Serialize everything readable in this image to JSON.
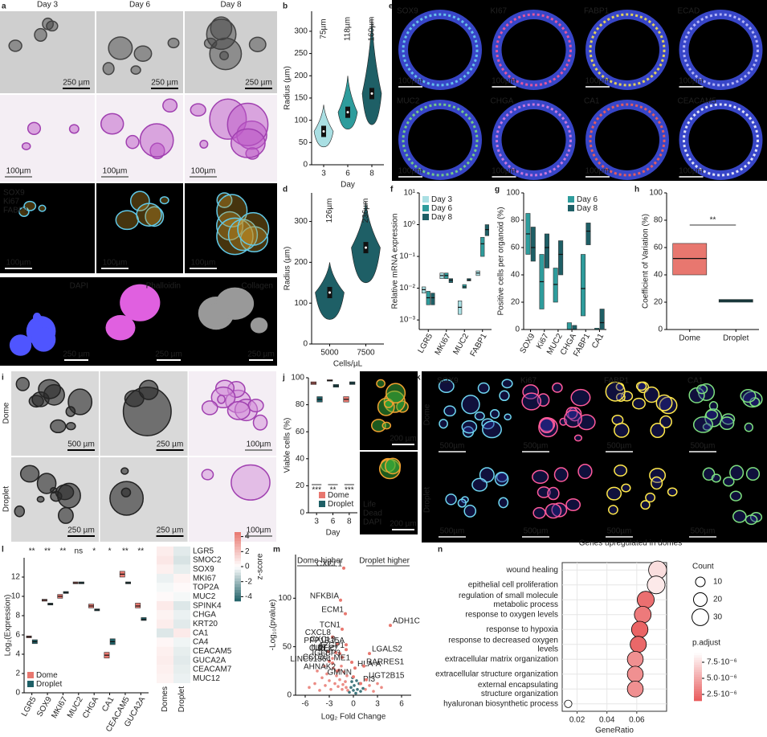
{
  "panel_labels": [
    "a",
    "b",
    "c",
    "d",
    "e",
    "f",
    "g",
    "h",
    "i",
    "j",
    "k",
    "l",
    "m",
    "n"
  ],
  "images": {
    "a": {
      "columns": [
        "Day 3",
        "Day 6",
        "Day 8"
      ],
      "scale_bars": [
        [
          "250 µm",
          "250 µm",
          "250 µm"
        ],
        [
          "100µm",
          "100µm",
          "100µm"
        ],
        [
          "100µm",
          "100µm",
          "100µm"
        ]
      ],
      "stains": [
        "SOX9",
        "Ki67",
        "FABP1"
      ],
      "stain_colors": [
        "#6fd6f0",
        "#ff5a5a",
        "#ffe84a"
      ]
    },
    "c": {
      "stains": [
        "DAPI",
        "Phalloidin",
        "Collagen"
      ],
      "stain_colors": [
        "#4f55ff",
        "#e060e0",
        "#ffffff"
      ],
      "scale_bars": [
        "250 µm",
        "250 µm",
        "250 µm"
      ]
    },
    "e": {
      "stains": [
        "SOX9",
        "KI67",
        "FABP1",
        "ECAD",
        "MUC2",
        "CHGA",
        "CA1",
        "CEACAM5"
      ],
      "stain_colors": [
        "#6fd6f0",
        "#ff5a9a",
        "#ffe84a",
        "#c8c8ff",
        "#7ee07e",
        "#e080e0",
        "#ff6050",
        "#ffffff"
      ],
      "scale_bars": [
        "100µm",
        "100µm",
        "100µm",
        "100µm",
        "100µm",
        "100µm",
        "100µm",
        "100µm"
      ]
    },
    "i": {
      "rows": [
        "Dome",
        "Droplet"
      ],
      "row_colors": [
        "#e8776f",
        "#1e5f66"
      ],
      "scale_bars": [
        [
          "500 µm",
          "250 µm",
          "100µm"
        ],
        [
          "250 µm",
          "250 µm",
          "100µm"
        ]
      ]
    },
    "j": {
      "scale_bars": [
        "200 µm",
        "200 µm"
      ],
      "stains": [
        "Life",
        "Dead",
        "DAPI"
      ],
      "stain_colors": [
        "#7ee07e",
        "#ffa030",
        "#5060ff"
      ]
    },
    "k": {
      "rows": [
        "Dome",
        "Droplet"
      ],
      "row_colors": [
        "#e8776f",
        "#1e8c8c"
      ],
      "stains": [
        "SOX9",
        "Ki67",
        "FABP1",
        "CA1"
      ],
      "stain_colors": [
        "#6fd6f0",
        "#ff5a9a",
        "#ffe84a",
        "#7ee07e"
      ],
      "scale_bars": [
        [
          "500µm",
          "500µm",
          "500µm",
          "500µm"
        ],
        [
          "500µm",
          "500µm",
          "500µm",
          "500µm"
        ]
      ]
    }
  },
  "chart_data": [
    {
      "type": "violin",
      "x_label": "Day",
      "y_label": "Radius (µm)",
      "categories": [
        "3",
        "6",
        "8"
      ],
      "values": [
        75,
        118,
        160
      ],
      "value_labels": [
        "75µm",
        "118µm",
        "160µm"
      ],
      "low": [
        40,
        80,
        90
      ],
      "high": [
        135,
        200,
        330
      ],
      "colors": [
        "#a9dfe3",
        "#2e9c9c",
        "#1e5f66"
      ],
      "ylim": [
        0,
        345
      ],
      "yticks": [
        0,
        50,
        100,
        150,
        200,
        250,
        300
      ]
    },
    {
      "type": "violin",
      "x_label": "Cells/µL",
      "y_label": "Radius (µm)",
      "categories": [
        "5000",
        "7500"
      ],
      "values": [
        126,
        236
      ],
      "value_labels": [
        "126µm",
        "236µm"
      ],
      "low": [
        60,
        150
      ],
      "high": [
        200,
        350
      ],
      "colors": [
        "#1e5f66",
        "#1e5f66"
      ],
      "ylim": [
        0,
        370
      ],
      "yticks": [
        0,
        100,
        200,
        300
      ]
    },
    {
      "type": "box",
      "y_label": "Relative mRNA expression",
      "log_y": true,
      "rotate_labels": true,
      "legend": "upper left",
      "categories": [
        "LGR5",
        "MKI67",
        "MUC2",
        "FABP1"
      ],
      "series": [
        {
          "name": "Day 3",
          "color": "#a9dfe3",
          "values": [
            0.009,
            0.025,
            0.0025,
            0.03
          ],
          "low": [
            0.007,
            0.02,
            0.0015,
            0.025
          ],
          "high": [
            0.011,
            0.03,
            0.004,
            0.035
          ]
        },
        {
          "name": "Day 6",
          "color": "#2e9c9c",
          "values": [
            0.005,
            0.025,
            0.011,
            0.25
          ],
          "low": [
            0.003,
            0.02,
            0.01,
            0.1
          ],
          "high": [
            0.008,
            0.03,
            0.013,
            0.4
          ]
        },
        {
          "name": "Day 8",
          "color": "#1e5f66",
          "values": [
            0.005,
            0.018,
            0.018,
            0.7
          ],
          "low": [
            0.003,
            0.015,
            0.017,
            0.45
          ],
          "high": [
            0.007,
            0.02,
            0.02,
            1.0
          ]
        }
      ],
      "ylim": [
        0.0005,
        10
      ],
      "yticks": [
        {
          "value": 0.001,
          "label": "10⁻³"
        },
        {
          "value": 0.01,
          "label": "10⁻²"
        },
        {
          "value": 0.1,
          "label": "10⁻¹"
        },
        {
          "value": 1,
          "label": "10⁰"
        },
        {
          "value": 10,
          "label": "10¹"
        }
      ]
    },
    {
      "type": "box",
      "y_label": "Positive cells per organoid (%)",
      "rotate_labels": true,
      "legend": "upper right",
      "categories": [
        "SOX9",
        "Ki67",
        "MUC2",
        "CHGA",
        "FABP1",
        "CA1"
      ],
      "series": [
        {
          "name": "Day 6",
          "color": "#2e9c9c",
          "values": [
            70,
            35,
            33,
            0,
            30,
            0
          ],
          "low": [
            55,
            15,
            20,
            0,
            10,
            0
          ],
          "high": [
            85,
            55,
            45,
            5,
            55,
            1
          ]
        },
        {
          "name": "Day 8",
          "color": "#1e5f66",
          "values": [
            60,
            60,
            55,
            0,
            72,
            5
          ],
          "low": [
            50,
            45,
            40,
            0,
            62,
            0
          ],
          "high": [
            75,
            70,
            65,
            3,
            78,
            15
          ]
        }
      ],
      "ylim": [
        0,
        100
      ],
      "yticks": [
        0,
        20,
        40,
        60,
        80,
        100
      ]
    },
    {
      "type": "box",
      "y_label": "Coefficient of Variation (%)",
      "categories": [
        "Dome",
        "Droplet"
      ],
      "values": [
        52,
        21
      ],
      "low": [
        40,
        20
      ],
      "high": [
        63,
        22
      ],
      "colors": [
        "#e8776f",
        "#1e5f66"
      ],
      "annotation": "**",
      "ylim": [
        0,
        100
      ],
      "yticks": [
        0,
        20,
        40,
        60,
        80,
        100
      ]
    },
    {
      "type": "box",
      "x_label": "Day",
      "y_label": "Viable cells (%)",
      "legend": "lower right",
      "categories": [
        "3",
        "6",
        "8"
      ],
      "series": [
        {
          "name": "Dome",
          "color": "#e8776f",
          "values": [
            96,
            98,
            84
          ],
          "low": [
            95,
            97.5,
            82
          ],
          "high": [
            97,
            98.5,
            86
          ]
        },
        {
          "name": "Droplet",
          "color": "#1e5f66",
          "values": [
            84,
            94,
            96
          ],
          "low": [
            82,
            93,
            95
          ],
          "high": [
            86,
            95,
            97
          ]
        }
      ],
      "significance": [
        "***",
        "**",
        "***"
      ],
      "ylim": [
        0,
        100
      ],
      "yticks": [
        0,
        20,
        40,
        60,
        80,
        100
      ]
    },
    {
      "type": "box",
      "y_label": "Log₂(Expression)",
      "rotate_labels": true,
      "legend": "lower left",
      "categories": [
        "LGR5",
        "SOX9",
        "MKI67",
        "MUC2",
        "CHGA",
        "CA1",
        "CEACAM5",
        "GUCA2A"
      ],
      "series": [
        {
          "name": "Dome",
          "color": "#e8776f",
          "values": [
            5.8,
            9.6,
            10.0,
            11.4,
            9.0,
            3.9,
            12.3,
            9.0
          ],
          "low": [
            5.7,
            9.5,
            9.8,
            11.3,
            8.8,
            3.6,
            12.0,
            8.8
          ],
          "high": [
            5.9,
            9.7,
            10.2,
            11.5,
            9.2,
            4.2,
            12.6,
            9.3
          ]
        },
        {
          "name": "Droplet",
          "color": "#1e5f66",
          "values": [
            5.3,
            9.2,
            10.4,
            11.4,
            8.6,
            5.3,
            11.4,
            7.6
          ],
          "low": [
            5.1,
            9.1,
            10.3,
            11.3,
            8.5,
            5.0,
            11.3,
            7.5
          ],
          "high": [
            5.5,
            9.3,
            10.5,
            11.5,
            8.7,
            5.6,
            11.5,
            7.8
          ]
        }
      ],
      "significance": [
        "**",
        "**",
        "**",
        "ns",
        "*",
        "*",
        "**",
        "**"
      ],
      "ylim": [
        0,
        14
      ],
      "yticks": [
        0,
        2,
        4,
        6,
        8,
        10,
        12
      ]
    },
    {
      "type": "heatmap",
      "rows": [
        "LGR5",
        "SMOC2",
        "SOX9",
        "MKI67",
        "TOP2A",
        "MUC2",
        "SPINK4",
        "CHGA",
        "KRT20",
        "CA1",
        "CA4",
        "CEACAM5",
        "GUCA2A",
        "CEACAM7",
        "MUC12"
      ],
      "columns": [
        "Domes",
        "Droplet"
      ],
      "values": [
        [
          0.6,
          -0.6
        ],
        [
          0.8,
          -0.8
        ],
        [
          0.5,
          -0.5
        ],
        [
          -0.4,
          0.4
        ],
        [
          -0.2,
          0.2
        ],
        [
          0.2,
          -0.2
        ],
        [
          0.7,
          -0.7
        ],
        [
          0.4,
          -0.4
        ],
        [
          0.6,
          -0.6
        ],
        [
          -0.7,
          0.7
        ],
        [
          0.3,
          -0.3
        ],
        [
          0.5,
          -0.5
        ],
        [
          0.6,
          -0.6
        ],
        [
          0.5,
          -0.5
        ],
        [
          0.4,
          -0.4
        ]
      ],
      "colorbar_label": "z-score",
      "zlim": [
        -4.6,
        4.6
      ],
      "zticks": [
        4,
        2,
        0,
        -2,
        -4
      ],
      "colors": [
        "#1e5f66",
        "#ffffff",
        "#e8776f"
      ]
    },
    {
      "type": "scatter",
      "x_label": "Log₂ Fold Change",
      "y_label": "-Log₁₀(pvalue)",
      "annotations": [
        "Dome higher",
        "Droplet higher"
      ],
      "xlim": [
        -7.2,
        7.2
      ],
      "xticks": [
        -6,
        -3,
        0,
        3,
        6
      ],
      "ylim": [
        0,
        145
      ],
      "yticks": [
        0,
        50,
        100
      ],
      "series": [
        {
          "color": "#e8776f",
          "x": [
            -5.5,
            -4.8,
            -4.2,
            -3.9,
            -3.5,
            -3.3,
            -3,
            -2.8,
            -2.5,
            -2.3,
            -2.1,
            -1.9,
            -1.7,
            -1.5,
            -1.3,
            -1.2,
            -1,
            -0.9,
            -0.8,
            -0.7,
            -3.6,
            -2.6,
            -1.8,
            -1.4,
            -4.5,
            1.5,
            2,
            2.5,
            3,
            3.5
          ],
          "y": [
            8,
            12,
            5,
            18,
            10,
            22,
            15,
            6,
            28,
            12,
            20,
            9,
            16,
            30,
            11,
            24,
            14,
            8,
            20,
            5,
            30,
            38,
            26,
            6,
            25,
            6,
            10,
            4,
            12,
            8
          ]
        },
        {
          "color": "#1e5f66",
          "x": [
            -0.5,
            -0.3,
            -0.2,
            0,
            0.1,
            0.3,
            0.5,
            0.7,
            0.9,
            1.2,
            -0.1,
            0.4
          ],
          "y": [
            3,
            8,
            14,
            5,
            10,
            2,
            6,
            12,
            4,
            7,
            18,
            15
          ]
        }
      ],
      "labeled_points": {
        "color": "#e8776f",
        "labels": [
          "CXCL1",
          "ADH1C",
          "NFKBIA",
          "ECM1",
          "TCN1",
          "CXCL8",
          "CXCL3",
          "IL37",
          "CIDEC",
          "KLK7",
          "PPP1R15A",
          "AZGP1",
          "IGFBP3",
          "CCL20",
          "LINC01564",
          "AHNAK2",
          "ME1",
          "HLA-A",
          "RARRES1",
          "GMNN",
          "PI3",
          "UGT2B15",
          "LGALS2"
        ],
        "x": [
          -1.2,
          4.6,
          -1.6,
          -1,
          -1.4,
          -2.6,
          -2,
          -3.1,
          -2.2,
          -1.7,
          -0.9,
          -0.9,
          -1.4,
          -3,
          -2.6,
          -2,
          -0.2,
          0.2,
          1.3,
          0,
          0.9,
          1.6,
          2
        ],
        "y": [
          131,
          72,
          98,
          84,
          68,
          60,
          53,
          45,
          44,
          43,
          52,
          47,
          39,
          35,
          33,
          25,
          34,
          28,
          30,
          19,
          12,
          16,
          43
        ]
      }
    },
    {
      "type": "dot",
      "title": "Genes upregulated in domes",
      "x_label": "GeneRatio",
      "categories": [
        "wound healing",
        "epithelial cell proliferation",
        "regulation of small molecule\nmetabolic process",
        "response to oxygen levels",
        "response to hypoxia",
        "response to decreased oxygen\nlevels",
        "extracellular matrix organization",
        "extracellular structure organization",
        "external encapsulating\nstructure organization",
        "hyaluronan biosynthetic process"
      ],
      "values": [
        0.074,
        0.073,
        0.066,
        0.064,
        0.062,
        0.061,
        0.059,
        0.059,
        0.059,
        0.014
      ],
      "sizes": [
        35,
        34,
        31,
        30,
        29,
        28,
        27,
        27,
        27,
        6
      ],
      "p_adjust": [
        7.5e-06,
        8e-06,
        2.5e-06,
        3e-06,
        2e-06,
        2.2e-06,
        4e-06,
        4e-06,
        4e-06,
        9e-06
      ],
      "xlim": [
        0.01,
        0.08
      ],
      "xticks": [
        0.02,
        0.04,
        0.06
      ],
      "size_legend_title": "Count",
      "size_legend": [
        10,
        20,
        30
      ],
      "colorbar_title": "p.adjust",
      "colorbar_lim": [
        1.5e-06,
        9e-06
      ],
      "colors": [
        "#e8595a",
        "#ffffff"
      ],
      "colorbar_ticks": [
        {
          "value": 7.5e-06,
          "label": "7.5·10⁻⁶"
        },
        {
          "value": 5e-06,
          "label": "5.0·10⁻⁶"
        },
        {
          "value": 2.5e-06,
          "label": "2.5·10⁻⁶"
        }
      ]
    }
  ]
}
